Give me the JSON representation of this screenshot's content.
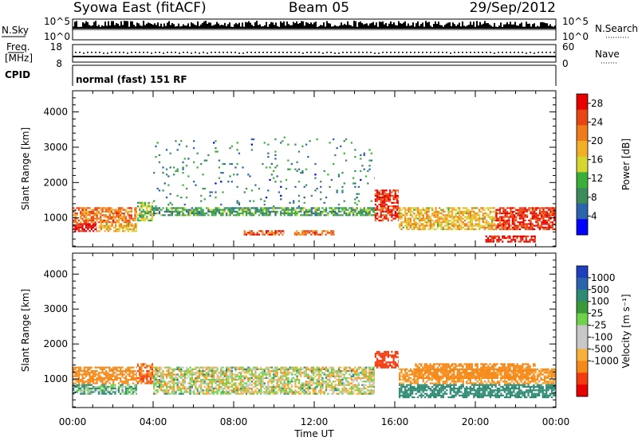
{
  "header": {
    "station": "Syowa East (fitACF)",
    "beam": "Beam 05",
    "date": "29/Sep/2012"
  },
  "panels": {
    "nsky": {
      "left_label": "N.Sky",
      "left_ticks": [
        "10^5",
        "10^0"
      ],
      "right_label": "N.Search",
      "right_ticks": [
        "10^5",
        "10^0"
      ]
    },
    "freq": {
      "left_label_1": "Freq.",
      "left_label_2": "[MHz]",
      "left_ticks": [
        "18",
        "8"
      ],
      "right_label": "Nave",
      "right_ticks": [
        "60",
        "0"
      ]
    },
    "cpid": {
      "label": "CPID",
      "value": "normal (fast) 151 RF"
    }
  },
  "colors": {
    "power": [
      "#0000ff",
      "#2b63ad",
      "#3b8b5b",
      "#3ab03a",
      "#d6d630",
      "#f2b02a",
      "#f07b1a",
      "#e84515",
      "#e60000"
    ],
    "velocity": [
      "#e60000",
      "#f23b0e",
      "#f58a1a",
      "#f7b03a",
      "#c8c8c8",
      "#c8c8c8",
      "#6fd24a",
      "#3a9a3a",
      "#2e8a72",
      "#2b63ad",
      "#1f3fbf"
    ]
  },
  "chart_data": [
    {
      "type": "heatmap",
      "title": "",
      "xlabel": "Time UT",
      "ylabel": "Slant Range [km]",
      "xlim": [
        0,
        24
      ],
      "ylim": [
        180,
        4600
      ],
      "xticks": [
        "00:00",
        "04:00",
        "08:00",
        "12:00",
        "16:00",
        "20:00",
        "00:00"
      ],
      "xtick_values": [
        0,
        4,
        8,
        12,
        16,
        20,
        24
      ],
      "yticks": [
        "1000",
        "2000",
        "3000",
        "4000"
      ],
      "ytick_values": [
        1000,
        2000,
        3000,
        4000
      ],
      "colorbar": {
        "label": "Power [dB]",
        "range": [
          0,
          30
        ],
        "tick_labels": [
          "4",
          "8",
          "12",
          "16",
          "20",
          "24",
          "28"
        ],
        "tick_values": [
          4,
          8,
          12,
          16,
          20,
          24,
          28
        ]
      },
      "regions": [
        {
          "t": [
            0.0,
            1.2
          ],
          "r": [
            600,
            850
          ],
          "value": 30
        },
        {
          "t": [
            0.0,
            3.2
          ],
          "r": [
            850,
            1300
          ],
          "value": 22
        },
        {
          "t": [
            1.2,
            3.2
          ],
          "r": [
            600,
            850
          ],
          "value": 18
        },
        {
          "t": [
            3.2,
            4.0
          ],
          "r": [
            900,
            1450
          ],
          "value": 14
        },
        {
          "t": [
            4.0,
            15.0
          ],
          "r": [
            1050,
            1300
          ],
          "value": 10
        },
        {
          "t": [
            8.5,
            10.5
          ],
          "r": [
            500,
            650
          ],
          "value": 24
        },
        {
          "t": [
            11.0,
            13.0
          ],
          "r": [
            500,
            650
          ],
          "value": 22
        },
        {
          "t": [
            15.0,
            16.2
          ],
          "r": [
            900,
            1800
          ],
          "value": 26
        },
        {
          "t": [
            16.2,
            21.0
          ],
          "r": [
            650,
            1300
          ],
          "value": 18
        },
        {
          "t": [
            21.0,
            24.0
          ],
          "r": [
            650,
            1300
          ],
          "value": 26
        },
        {
          "t": [
            20.5,
            23.0
          ],
          "r": [
            300,
            500
          ],
          "value": 28
        },
        {
          "t": [
            4.0,
            15.0
          ],
          "r": [
            1300,
            3300
          ],
          "value": 8
        }
      ]
    },
    {
      "type": "heatmap",
      "title": "",
      "xlabel": "Time UT",
      "ylabel": "Slant Range [km]",
      "xlim": [
        0,
        24
      ],
      "ylim": [
        180,
        4600
      ],
      "xticks": [
        "00:00",
        "04:00",
        "08:00",
        "12:00",
        "16:00",
        "20:00",
        "00:00"
      ],
      "xtick_values": [
        0,
        4,
        8,
        12,
        16,
        20,
        24
      ],
      "yticks": [
        "1000",
        "2000",
        "3000",
        "4000"
      ],
      "ytick_values": [
        1000,
        2000,
        3000,
        4000
      ],
      "colorbar": {
        "label": "Velocity [m s⁻¹]",
        "tick_labels": [
          "1000",
          "500",
          "100",
          "25",
          "-25",
          "-100",
          "-500",
          "-1000"
        ],
        "tick_values": [
          1000,
          500,
          100,
          25,
          -25,
          -100,
          -500,
          -1000
        ]
      },
      "regions": [
        {
          "t": [
            0.0,
            3.2
          ],
          "r": [
            550,
            850
          ],
          "value": 100
        },
        {
          "t": [
            0.0,
            3.2
          ],
          "r": [
            850,
            1350
          ],
          "value": -300
        },
        {
          "t": [
            3.2,
            4.0
          ],
          "r": [
            850,
            1450
          ],
          "value": -500
        },
        {
          "t": [
            4.0,
            15.0
          ],
          "r": [
            550,
            1350
          ],
          "value": 0
        },
        {
          "t": [
            15.0,
            16.2
          ],
          "r": [
            1300,
            1800
          ],
          "value": -700
        },
        {
          "t": [
            16.2,
            24.0
          ],
          "r": [
            450,
            850
          ],
          "value": 300
        },
        {
          "t": [
            16.2,
            24.0
          ],
          "r": [
            850,
            1300
          ],
          "value": -150
        },
        {
          "t": [
            17.0,
            23.0
          ],
          "r": [
            1000,
            1450
          ],
          "value": -300
        }
      ]
    }
  ]
}
